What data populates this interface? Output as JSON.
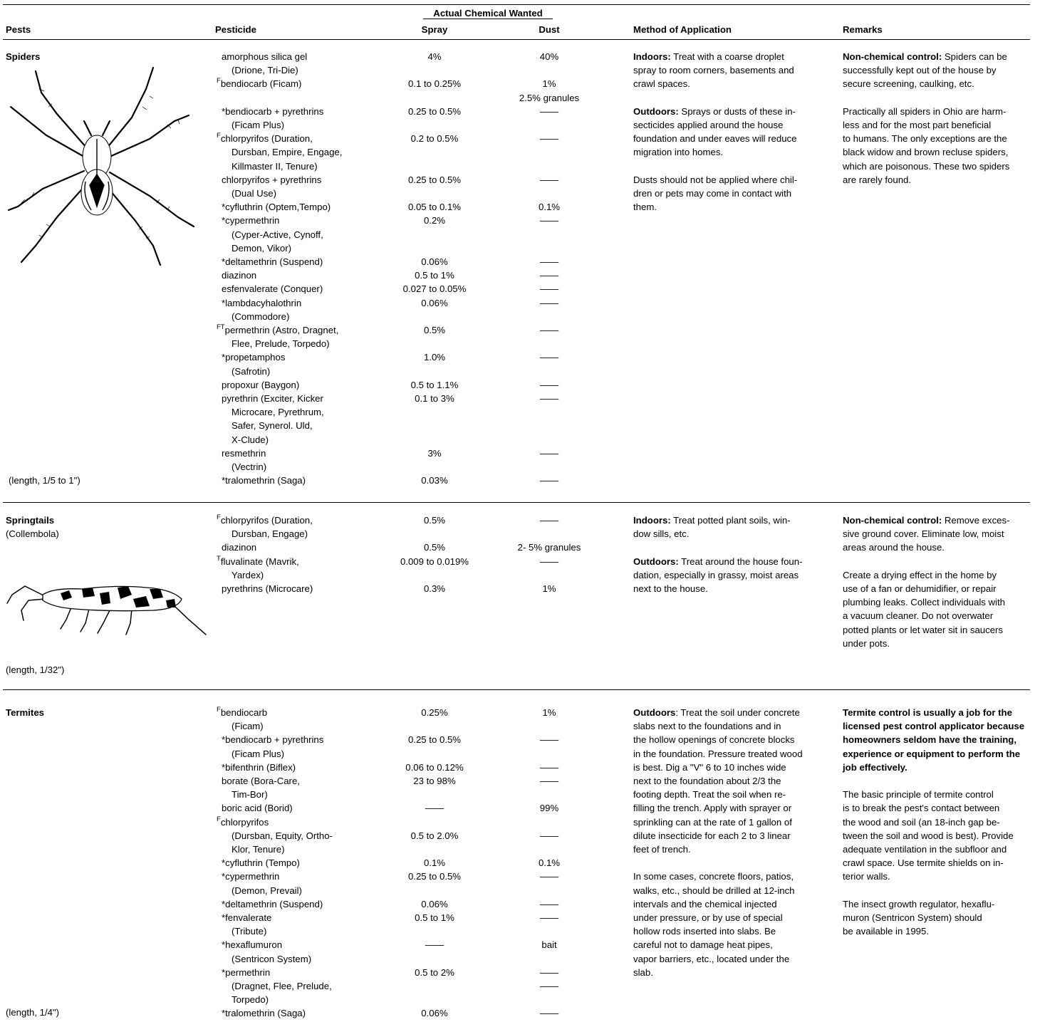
{
  "header": {
    "super_label": "Actual Chemical Wanted",
    "pests": "Pests",
    "pesticide": "Pesticide",
    "spray": "Spray",
    "dust": "Dust",
    "method": "Method of Application",
    "remarks": "Remarks"
  },
  "spiders": {
    "name": "Spiders",
    "length": "(length, 1/5 to 1\")",
    "rows": [
      {
        "sup": "",
        "text": "amorphous silica gel",
        "spray": "4%",
        "dust": "40%"
      },
      {
        "sup": "",
        "text": "(Drione, Tri-Die)",
        "cont": true
      },
      {
        "sup": "F",
        "text": "bendiocarb (Ficam)",
        "spray": "0.1 to 0.25%",
        "dust": "1%"
      },
      {
        "sup": "",
        "text": "",
        "dust": "2.5% granules"
      },
      {
        "sup": "",
        "text": "*bendiocarb + pyrethrins",
        "spray": "0.25 to 0.5%",
        "dust": "——"
      },
      {
        "sup": "",
        "text": "(Ficam Plus)",
        "cont": true
      },
      {
        "sup": "F",
        "text": "chlorpyrifos (Duration,",
        "spray": "0.2 to 0.5%",
        "dust": "——"
      },
      {
        "sup": "",
        "text": "Dursban, Empire, Engage,",
        "cont": true
      },
      {
        "sup": "",
        "text": "Killmaster II, Tenure)",
        "cont": true
      },
      {
        "sup": "",
        "text": "chlorpyrifos + pyrethrins",
        "spray": "0.25 to 0.5%",
        "dust": "——"
      },
      {
        "sup": "",
        "text": "(Dual Use)",
        "cont": true
      },
      {
        "sup": "",
        "text": "*cyfluthrin (Optem,Tempo)",
        "spray": "0.05 to 0.1%",
        "dust": "0.1%"
      },
      {
        "sup": "",
        "text": "*cypermethrin",
        "spray": "0.2%",
        "dust": "——"
      },
      {
        "sup": "",
        "text": "(Cyper-Active, Cynoff,",
        "cont": true
      },
      {
        "sup": "",
        "text": "Demon, Vikor)",
        "cont": true
      },
      {
        "sup": "",
        "text": "*deltamethrin (Suspend)",
        "spray": "0.06%",
        "dust": "——"
      },
      {
        "sup": "",
        "text": "diazinon",
        "spray": "0.5 to 1%",
        "dust": "——"
      },
      {
        "sup": "",
        "text": "esfenvalerate (Conquer)",
        "spray": "0.027 to 0.05%",
        "dust": "——"
      },
      {
        "sup": "",
        "text": "*lambdacyhalothrin",
        "spray": "0.06%",
        "dust": "——"
      },
      {
        "sup": "",
        "text": "(Commodore)",
        "cont": true
      },
      {
        "sup": "FT",
        "text": "permethrin (Astro, Dragnet,",
        "spray": "0.5%",
        "dust": "——"
      },
      {
        "sup": "",
        "text": "Flee, Prelude, Torpedo)",
        "cont": true
      },
      {
        "sup": "",
        "text": "*propetamphos",
        "spray": "1.0%",
        "dust": "——"
      },
      {
        "sup": "",
        "text": "(Safrotin)",
        "cont": true
      },
      {
        "sup": "",
        "text": "propoxur (Baygon)",
        "spray": "0.5 to 1.1%",
        "dust": "——"
      },
      {
        "sup": "",
        "text": "pyrethrin (Exciter,  Kicker",
        "spray": "0.1 to 3%",
        "dust": "——"
      },
      {
        "sup": "",
        "text": "Microcare, Pyrethrum,",
        "cont": true
      },
      {
        "sup": "",
        "text": "Safer, Synerol. Uld,",
        "cont": true
      },
      {
        "sup": "",
        "text": "X-Clude)",
        "cont": true
      },
      {
        "sup": "",
        "text": "resmethrin",
        "spray": "3%",
        "dust": "——"
      },
      {
        "sup": "",
        "text": "(Vectrin)",
        "cont": true
      },
      {
        "sup": "",
        "text": "*tralomethrin (Saga)",
        "spray": "0.03%",
        "dust": "——"
      }
    ],
    "method": [
      {
        "bold": "Indoors:",
        "lines": [
          " Treat with a coarse droplet",
          "spray to room corners, basements and",
          "crawl spaces."
        ]
      },
      {
        "bold": "Outdoors:",
        "lines": [
          " Sprays or dusts of these in-",
          "secticides applied around the house",
          "foundation and under eaves will reduce",
          "migration into homes."
        ]
      },
      {
        "bold": "",
        "lines": [
          "Dusts should not be applied where chil-",
          "dren or pets may come in contact with",
          "them."
        ]
      }
    ],
    "remarks": [
      {
        "bold": "Non-chemical control:",
        "lines": [
          " Spiders can be",
          "successfully kept out of the house by",
          "secure screening, caulking, etc."
        ]
      },
      {
        "bold": "",
        "lines": [
          "Practically all spiders in Ohio are harm-",
          "less and for the most part beneficial",
          "to humans.  The only exceptions are the",
          "black widow and brown recluse spiders,",
          "which are poisonous.  These two spiders",
          "are rarely found."
        ]
      }
    ]
  },
  "springtails": {
    "name": "Springtails",
    "subname": "(Collembola)",
    "length": "(length, 1/32\")",
    "rows": [
      {
        "sup": "F",
        "text": "chlorpyrifos (Duration,",
        "spray": "0.5%",
        "dust": "——"
      },
      {
        "sup": "",
        "text": "Dursban, Engage)",
        "cont": true
      },
      {
        "sup": "",
        "text": "diazinon",
        "spray": "0.5%",
        "dust": "2- 5% granules"
      },
      {
        "sup": "T",
        "text": "fluvalinate (Mavrik,",
        "spray": "0.009  to 0.019%",
        "dust": "——"
      },
      {
        "sup": "",
        "text": "Yardex)",
        "cont": true
      },
      {
        "sup": "",
        "text": "pyrethrins (Microcare)",
        "spray": "0.3%",
        "dust": "1%"
      }
    ],
    "method": [
      {
        "bold": "Indoors:",
        "lines": [
          " Treat potted plant soils, win-",
          "dow sills, etc."
        ]
      },
      {
        "bold": "Outdoors:",
        "lines": [
          " Treat around the house foun-",
          "dation, especially in grassy, moist areas",
          "next to the house."
        ]
      }
    ],
    "remarks": [
      {
        "bold": "Non-chemical control:",
        "lines": [
          " Remove exces-",
          "sive ground cover. Eliminate low, moist",
          "areas around the house."
        ]
      },
      {
        "bold": "",
        "lines": [
          "Create a drying effect in the home by",
          "use of a fan or dehumidifier, or repair",
          "plumbing leaks.  Collect individuals with",
          "a vacuum cleaner. Do not overwater",
          "potted plants or let water sit in saucers",
          "under pots."
        ]
      }
    ]
  },
  "termites": {
    "name": "Termites",
    "length": "(length, 1/4\")",
    "rows": [
      {
        "sup": "F",
        "text": "bendiocarb",
        "spray": "0.25%",
        "dust": "1%"
      },
      {
        "sup": "",
        "text": "(Ficam)",
        "cont": true
      },
      {
        "sup": "",
        "text": "*bendiocarb + pyrethrins",
        "spray": "0.25 to 0.5%",
        "dust": "——"
      },
      {
        "sup": "",
        "text": "(Ficam Plus)",
        "cont": true
      },
      {
        "sup": "",
        "text": "*bifenthrin (Biflex)",
        "spray": "0.06 to 0.12%",
        "dust": "——"
      },
      {
        "sup": "",
        "text": "borate (Bora-Care,",
        "spray": "23 to 98%",
        "dust": "——"
      },
      {
        "sup": "",
        "text": "Tim-Bor)",
        "cont": true
      },
      {
        "sup": "",
        "text": "boric acid (Borid)",
        "spray": "——",
        "dust": "99%"
      },
      {
        "sup": "F",
        "text": "chlorpyrifos",
        "spray": "",
        "dust": ""
      },
      {
        "sup": "",
        "text": "(Dursban, Equity, Ortho-",
        "cont": true,
        "spray": "0.5 to 2.0%",
        "dust": "——"
      },
      {
        "sup": "",
        "text": "Klor, Tenure)",
        "cont": true
      },
      {
        "sup": "",
        "text": "*cyfluthrin (Tempo)",
        "spray": "0.1%",
        "dust": "0.1%"
      },
      {
        "sup": "",
        "text": "*cypermethrin",
        "spray": "0.25 to 0.5%",
        "dust": "——"
      },
      {
        "sup": "",
        "text": "(Demon, Prevail)",
        "cont": true
      },
      {
        "sup": "",
        "text": "*deltamethrin (Suspend)",
        "spray": "0.06%",
        "dust": "——"
      },
      {
        "sup": "",
        "text": "*fenvalerate",
        "spray": "0.5 to 1%",
        "dust": "——"
      },
      {
        "sup": "",
        "text": "(Tribute)",
        "cont": true
      },
      {
        "sup": "",
        "text": "*hexaflumuron",
        "spray": "——",
        "dust": "bait"
      },
      {
        "sup": "",
        "text": "(Sentricon System)",
        "cont": true
      },
      {
        "sup": "",
        "text": "*permethrin",
        "spray": "0.5 to 2%",
        "dust": "——"
      },
      {
        "sup": "",
        "text": "(Dragnet, Flee, Prelude,",
        "cont": true,
        "dust": "——"
      },
      {
        "sup": "",
        "text": "Torpedo)",
        "cont": true
      },
      {
        "sup": "",
        "text": "*tralomethrin (Saga)",
        "spray": "0.06%",
        "dust": "——"
      }
    ],
    "method": [
      {
        "bold": "Outdoors",
        "lines": [
          ": Treat the soil under concrete",
          "slabs next to the foundations and in",
          "the hollow openings of concrete blocks",
          "in the foundation.  Pressure treated wood",
          "is best.  Dig a \"V\" 6 to 10 inches wide",
          "next to the foundation about 2/3 the",
          "footing depth.  Treat the soil when re-",
          "filling the trench.  Apply with sprayer or",
          "sprinkling can at the rate of 1 gallon of",
          "dilute insecticide for each 2 to 3 linear",
          "feet of trench."
        ]
      },
      {
        "bold": "",
        "lines": [
          "In some cases, concrete floors, patios,",
          "walks, etc., should be drilled at 12-inch",
          "intervals and the chemical injected",
          "under pressure, or by use of special",
          "hollow rods inserted into slabs.  Be",
          "careful not to damage heat pipes,",
          "vapor barriers, etc., located under the",
          "slab."
        ]
      }
    ],
    "remarks": [
      {
        "boldblock": [
          "Termite control is usually a job for the",
          "licensed pest control applicator because",
          "homeowners seldom have the training,",
          "experience or equipment to perform the",
          "job effectively."
        ]
      },
      {
        "bold": "",
        "lines": [
          "The basic principle of termite control",
          "is to break the pest's contact between",
          "the wood and soil (an 18-inch gap be-",
          "tween the soil and wood is best).  Provide",
          "adequate ventilation in the subfloor and",
          "crawl space.  Use termite shields on in-",
          "terior walls."
        ]
      },
      {
        "bold": "",
        "lines": [
          "The insect growth regulator, hexaflu-",
          "muron (Sentricon System) should",
          "be available in 1995."
        ]
      }
    ]
  },
  "icons": {
    "spider": "spider-illustration",
    "springtail": "springtail-illustration"
  }
}
